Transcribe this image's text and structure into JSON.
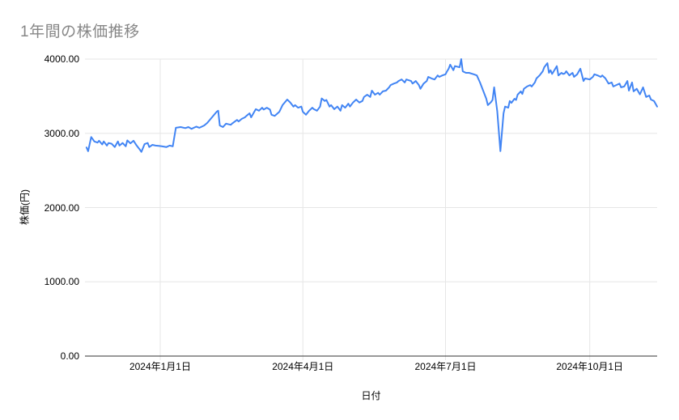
{
  "header": {
    "title": "1年間の株価推移"
  },
  "colors": {
    "series": "#4285f4",
    "gridline": "#e6e6e6",
    "axis_baseline": "#333333",
    "title_text": "#878787",
    "tick_text": "#000000",
    "background": "#ffffff"
  },
  "chart_data": {
    "type": "line",
    "title": "1年間の株価推移",
    "xlabel": "日付",
    "ylabel": "株価(円)",
    "legend": "none",
    "grid": true,
    "ylim": [
      0,
      4000
    ],
    "y_ticks": [
      {
        "value": 0,
        "label": "0.00"
      },
      {
        "value": 1000,
        "label": "1000.00"
      },
      {
        "value": 2000,
        "label": "2000.00"
      },
      {
        "value": 3000,
        "label": "3000.00"
      },
      {
        "value": 4000,
        "label": "4000.00"
      }
    ],
    "x_start_date": "2023-11-14",
    "x_end_date": "2024-11-13",
    "x_ticks": [
      {
        "date": "2024-01-01",
        "label": "2024年1月1日"
      },
      {
        "date": "2024-04-01",
        "label": "2024年4月1日"
      },
      {
        "date": "2024-07-01",
        "label": "2024年7月1日"
      },
      {
        "date": "2024-10-01",
        "label": "2024年10月1日"
      }
    ],
    "series_name": "株価",
    "points_format": "[days_since_x_start_date, price_yen]",
    "points": [
      [
        1,
        2810
      ],
      [
        2,
        2760
      ],
      [
        4,
        2950
      ],
      [
        6,
        2890
      ],
      [
        8,
        2875
      ],
      [
        9,
        2900
      ],
      [
        11,
        2850
      ],
      [
        12,
        2890
      ],
      [
        14,
        2835
      ],
      [
        15,
        2870
      ],
      [
        17,
        2860
      ],
      [
        19,
        2815
      ],
      [
        21,
        2890
      ],
      [
        22,
        2835
      ],
      [
        24,
        2870
      ],
      [
        26,
        2825
      ],
      [
        27,
        2905
      ],
      [
        29,
        2865
      ],
      [
        31,
        2900
      ],
      [
        33,
        2835
      ],
      [
        35,
        2780
      ],
      [
        36,
        2750
      ],
      [
        38,
        2855
      ],
      [
        40,
        2870
      ],
      [
        41,
        2815
      ],
      [
        43,
        2845
      ],
      [
        45,
        2835
      ],
      [
        47,
        2830
      ],
      [
        49,
        2825
      ],
      [
        52,
        2815
      ],
      [
        54,
        2835
      ],
      [
        56,
        2825
      ],
      [
        58,
        3075
      ],
      [
        61,
        3085
      ],
      [
        64,
        3070
      ],
      [
        66,
        3085
      ],
      [
        68,
        3060
      ],
      [
        71,
        3090
      ],
      [
        73,
        3075
      ],
      [
        76,
        3105
      ],
      [
        78,
        3140
      ],
      [
        81,
        3215
      ],
      [
        84,
        3290
      ],
      [
        85,
        3305
      ],
      [
        86,
        3105
      ],
      [
        88,
        3085
      ],
      [
        90,
        3130
      ],
      [
        93,
        3115
      ],
      [
        94,
        3135
      ],
      [
        97,
        3180
      ],
      [
        98,
        3160
      ],
      [
        100,
        3195
      ],
      [
        102,
        3215
      ],
      [
        103,
        3235
      ],
      [
        105,
        3270
      ],
      [
        106,
        3215
      ],
      [
        108,
        3290
      ],
      [
        109,
        3325
      ],
      [
        111,
        3305
      ],
      [
        113,
        3345
      ],
      [
        114,
        3320
      ],
      [
        116,
        3345
      ],
      [
        118,
        3320
      ],
      [
        119,
        3250
      ],
      [
        121,
        3235
      ],
      [
        124,
        3290
      ],
      [
        126,
        3380
      ],
      [
        129,
        3455
      ],
      [
        131,
        3415
      ],
      [
        133,
        3360
      ],
      [
        134,
        3380
      ],
      [
        136,
        3345
      ],
      [
        138,
        3360
      ],
      [
        139,
        3290
      ],
      [
        141,
        3250
      ],
      [
        143,
        3305
      ],
      [
        145,
        3345
      ],
      [
        146,
        3325
      ],
      [
        148,
        3305
      ],
      [
        150,
        3360
      ],
      [
        151,
        3470
      ],
      [
        153,
        3435
      ],
      [
        154,
        3450
      ],
      [
        156,
        3360
      ],
      [
        157,
        3380
      ],
      [
        159,
        3325
      ],
      [
        161,
        3360
      ],
      [
        163,
        3305
      ],
      [
        164,
        3380
      ],
      [
        166,
        3345
      ],
      [
        168,
        3400
      ],
      [
        169,
        3360
      ],
      [
        171,
        3415
      ],
      [
        173,
        3455
      ],
      [
        175,
        3415
      ],
      [
        177,
        3435
      ],
      [
        178,
        3490
      ],
      [
        180,
        3520
      ],
      [
        182,
        3490
      ],
      [
        183,
        3575
      ],
      [
        185,
        3520
      ],
      [
        187,
        3545
      ],
      [
        188,
        3520
      ],
      [
        190,
        3565
      ],
      [
        192,
        3575
      ],
      [
        194,
        3620
      ],
      [
        195,
        3650
      ],
      [
        197,
        3670
      ],
      [
        199,
        3685
      ],
      [
        200,
        3705
      ],
      [
        202,
        3725
      ],
      [
        204,
        3685
      ],
      [
        205,
        3725
      ],
      [
        208,
        3705
      ],
      [
        209,
        3670
      ],
      [
        211,
        3705
      ],
      [
        213,
        3650
      ],
      [
        214,
        3600
      ],
      [
        216,
        3670
      ],
      [
        218,
        3705
      ],
      [
        219,
        3760
      ],
      [
        221,
        3740
      ],
      [
        223,
        3725
      ],
      [
        225,
        3780
      ],
      [
        226,
        3760
      ],
      [
        228,
        3780
      ],
      [
        230,
        3795
      ],
      [
        231,
        3835
      ],
      [
        232,
        3870
      ],
      [
        233,
        3925
      ],
      [
        235,
        3850
      ],
      [
        236,
        3905
      ],
      [
        239,
        3890
      ],
      [
        240,
        4000
      ],
      [
        241,
        3835
      ],
      [
        243,
        3815
      ],
      [
        245,
        3815
      ],
      [
        248,
        3795
      ],
      [
        250,
        3780
      ],
      [
        252,
        3685
      ],
      [
        254,
        3575
      ],
      [
        256,
        3465
      ],
      [
        257,
        3380
      ],
      [
        259,
        3420
      ],
      [
        260,
        3450
      ],
      [
        261,
        3620
      ],
      [
        263,
        3300
      ],
      [
        265,
        2760
      ],
      [
        267,
        3270
      ],
      [
        268,
        3360
      ],
      [
        270,
        3345
      ],
      [
        271,
        3435
      ],
      [
        272,
        3410
      ],
      [
        274,
        3465
      ],
      [
        275,
        3450
      ],
      [
        276,
        3520
      ],
      [
        278,
        3565
      ],
      [
        279,
        3530
      ],
      [
        280,
        3600
      ],
      [
        282,
        3630
      ],
      [
        284,
        3650
      ],
      [
        285,
        3630
      ],
      [
        287,
        3685
      ],
      [
        288,
        3740
      ],
      [
        290,
        3780
      ],
      [
        292,
        3835
      ],
      [
        293,
        3890
      ],
      [
        295,
        3945
      ],
      [
        296,
        3815
      ],
      [
        297,
        3850
      ],
      [
        298,
        3800
      ],
      [
        299,
        3835
      ],
      [
        301,
        3905
      ],
      [
        302,
        3780
      ],
      [
        304,
        3815
      ],
      [
        305,
        3800
      ],
      [
        306,
        3805
      ],
      [
        307,
        3835
      ],
      [
        309,
        3780
      ],
      [
        311,
        3815
      ],
      [
        312,
        3760
      ],
      [
        314,
        3795
      ],
      [
        316,
        3870
      ],
      [
        318,
        3705
      ],
      [
        319,
        3740
      ],
      [
        322,
        3725
      ],
      [
        324,
        3760
      ],
      [
        325,
        3795
      ],
      [
        327,
        3780
      ],
      [
        329,
        3760
      ],
      [
        330,
        3780
      ],
      [
        332,
        3740
      ],
      [
        334,
        3670
      ],
      [
        336,
        3685
      ],
      [
        337,
        3630
      ],
      [
        339,
        3650
      ],
      [
        341,
        3670
      ],
      [
        342,
        3620
      ],
      [
        344,
        3630
      ],
      [
        346,
        3705
      ],
      [
        347,
        3575
      ],
      [
        349,
        3685
      ],
      [
        350,
        3565
      ],
      [
        352,
        3600
      ],
      [
        354,
        3525
      ],
      [
        356,
        3620
      ],
      [
        358,
        3490
      ],
      [
        360,
        3510
      ],
      [
        361,
        3455
      ],
      [
        363,
        3435
      ],
      [
        365,
        3360
      ]
    ]
  }
}
